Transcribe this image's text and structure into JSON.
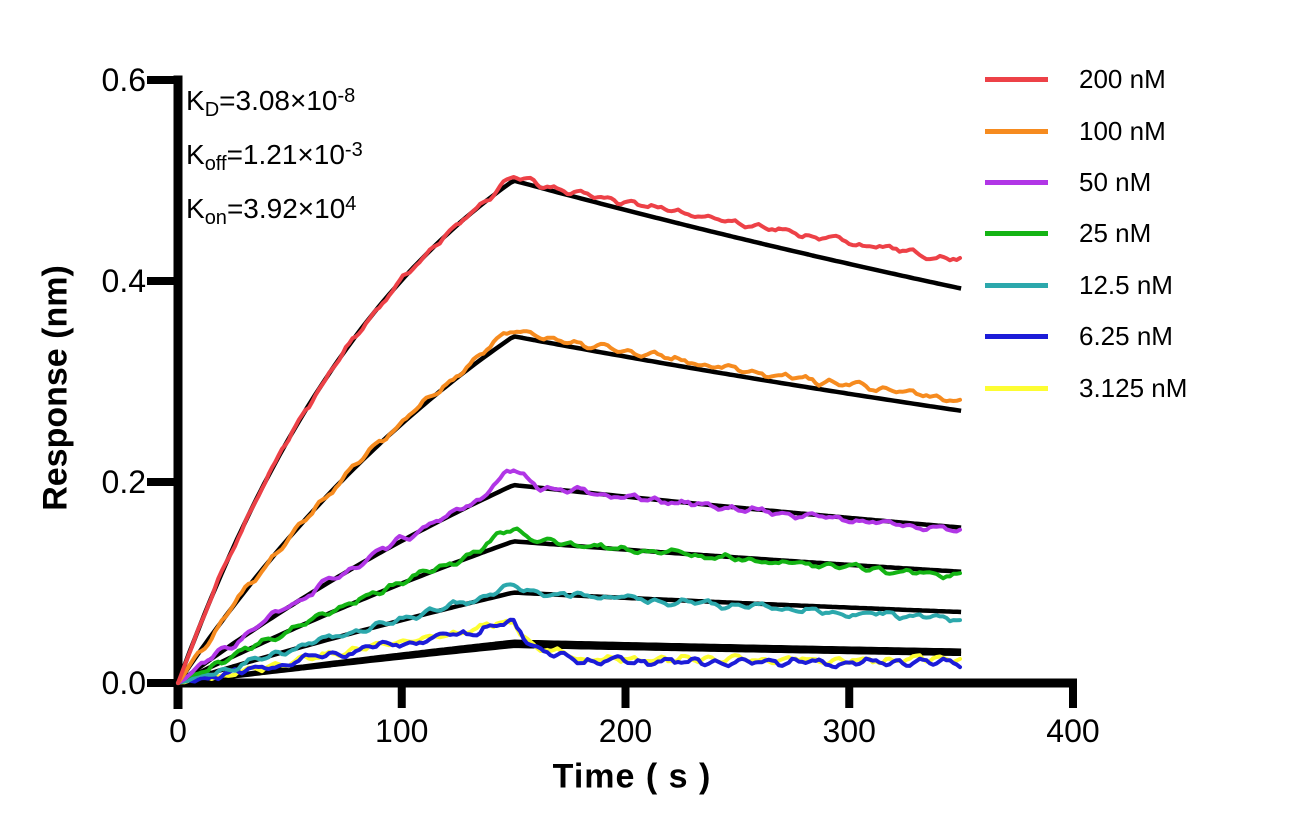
{
  "figure": {
    "background": "#FFFFFF"
  },
  "annotation": {
    "lines": [
      {
        "base": "K",
        "sub": "D",
        "eq": "=3.08×10",
        "sup": "-8"
      },
      {
        "base": "K",
        "sub": "off",
        "eq": "=1.21×10",
        "sup": "-3"
      },
      {
        "base": "K",
        "sub": "on",
        "eq": "=3.92×10",
        "sup": "4"
      }
    ]
  },
  "chart_data": {
    "type": "line",
    "xlabel": "Time ( s )",
    "ylabel": "Response (nm)",
    "xlim": [
      0,
      400
    ],
    "ylim": [
      0,
      0.6
    ],
    "x_ticks": [
      "0",
      "100",
      "200",
      "300",
      "400"
    ],
    "x_tick_values": [
      0,
      100,
      200,
      300,
      400
    ],
    "y_ticks": [
      "0.0",
      "0.2",
      "0.4",
      "0.6"
    ],
    "y_tick_values": [
      0,
      0.2,
      0.4,
      0.6
    ],
    "grid": false,
    "legend_position": "right",
    "association_phase_s": [
      0,
      150
    ],
    "dissociation_phase_s": [
      150,
      350
    ],
    "kinetics": {
      "KD_M": 3.08e-08,
      "koff_per_s": 0.00121,
      "kon_per_M_s": 39200
    },
    "fit_color": "#000000",
    "axis_color": "#000000",
    "series": [
      {
        "label": "200 nM",
        "conc_nM": 200,
        "color": "#ED4147",
        "kobs": 0.00905,
        "peak_nm": 0.5,
        "end_nm": 0.42,
        "fit_peak_nm": 0.5,
        "fit_end_nm": 0.393,
        "noise": 0.003,
        "spike": 0.004,
        "seed": 11,
        "fast_drop": false
      },
      {
        "label": "100 nM",
        "conc_nM": 100,
        "color": "#F68B1F",
        "kobs": 0.00513,
        "peak_nm": 0.348,
        "end_nm": 0.281,
        "fit_peak_nm": 0.345,
        "fit_end_nm": 0.271,
        "noise": 0.0033,
        "spike": 0.006,
        "seed": 22,
        "fast_drop": false
      },
      {
        "label": "50 nM",
        "conc_nM": 50,
        "color": "#B136E6",
        "kobs": 0.00317,
        "peak_nm": 0.198,
        "end_nm": 0.152,
        "fit_peak_nm": 0.197,
        "fit_end_nm": 0.155,
        "noise": 0.0034,
        "spike": 0.013,
        "seed": 33,
        "fast_drop": false
      },
      {
        "label": "25 nM",
        "conc_nM": 25,
        "color": "#14B414",
        "kobs": 0.00219,
        "peak_nm": 0.143,
        "end_nm": 0.107,
        "fit_peak_nm": 0.141,
        "fit_end_nm": 0.111,
        "noise": 0.0032,
        "spike": 0.012,
        "seed": 44,
        "fast_drop": false
      },
      {
        "label": "12.5 nM",
        "conc_nM": 12.5,
        "color": "#2CA8AC",
        "kobs": 0.0017,
        "peak_nm": 0.092,
        "end_nm": 0.064,
        "fit_peak_nm": 0.09,
        "fit_end_nm": 0.071,
        "noise": 0.0032,
        "spike": 0.004,
        "seed": 55,
        "fast_drop": false
      },
      {
        "label": "6.25 nM",
        "conc_nM": 6.25,
        "color": "#1C1CD8",
        "kobs": 0.00146,
        "peak_nm": 0.058,
        "end_nm": 0.021,
        "fit_peak_nm": 0.041,
        "fit_end_nm": 0.032,
        "noise": 0.0038,
        "spike": 0.004,
        "seed": 66,
        "fast_drop": true
      },
      {
        "label": "3.125 nM",
        "conc_nM": 3.125,
        "color": "#FDFD32",
        "kobs": 0.00133,
        "peak_nm": 0.06,
        "end_nm": 0.023,
        "fit_peak_nm": 0.037,
        "fit_end_nm": 0.029,
        "noise": 0.0038,
        "spike": 0.002,
        "seed": 77,
        "fast_drop": true
      }
    ]
  }
}
